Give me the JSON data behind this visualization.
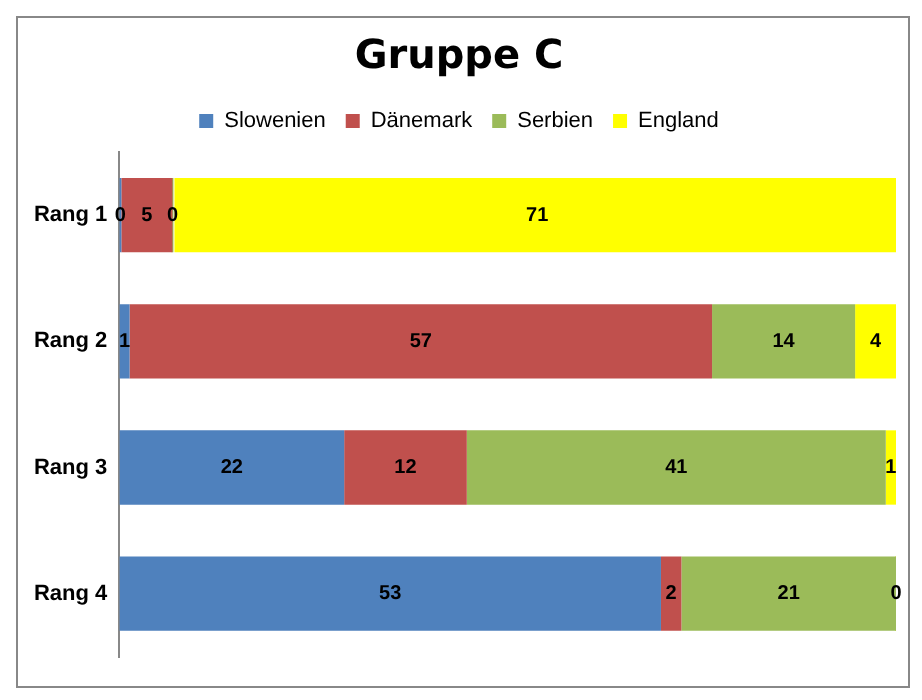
{
  "chart_data": {
    "type": "bar",
    "title": "Gruppe C",
    "orientation": "horizontal",
    "stacked": true,
    "categories": [
      "Rang 1",
      "Rang 2",
      "Rang 3",
      "Rang 4"
    ],
    "series": [
      {
        "name": "Slowenien",
        "color": "#4f81bd",
        "values": [
          0,
          1,
          22,
          53
        ]
      },
      {
        "name": "Dänemark",
        "color": "#c0504d",
        "values": [
          5,
          57,
          12,
          2
        ]
      },
      {
        "name": "Serbien",
        "color": "#9bbb59",
        "values": [
          0,
          14,
          41,
          21
        ]
      },
      {
        "name": "England",
        "color": "#ffff00",
        "values": [
          71,
          4,
          1,
          0
        ]
      }
    ],
    "xlim": [
      0,
      76
    ],
    "tick_labels": "y",
    "grid": false,
    "legend": "top",
    "data_labels": true
  }
}
